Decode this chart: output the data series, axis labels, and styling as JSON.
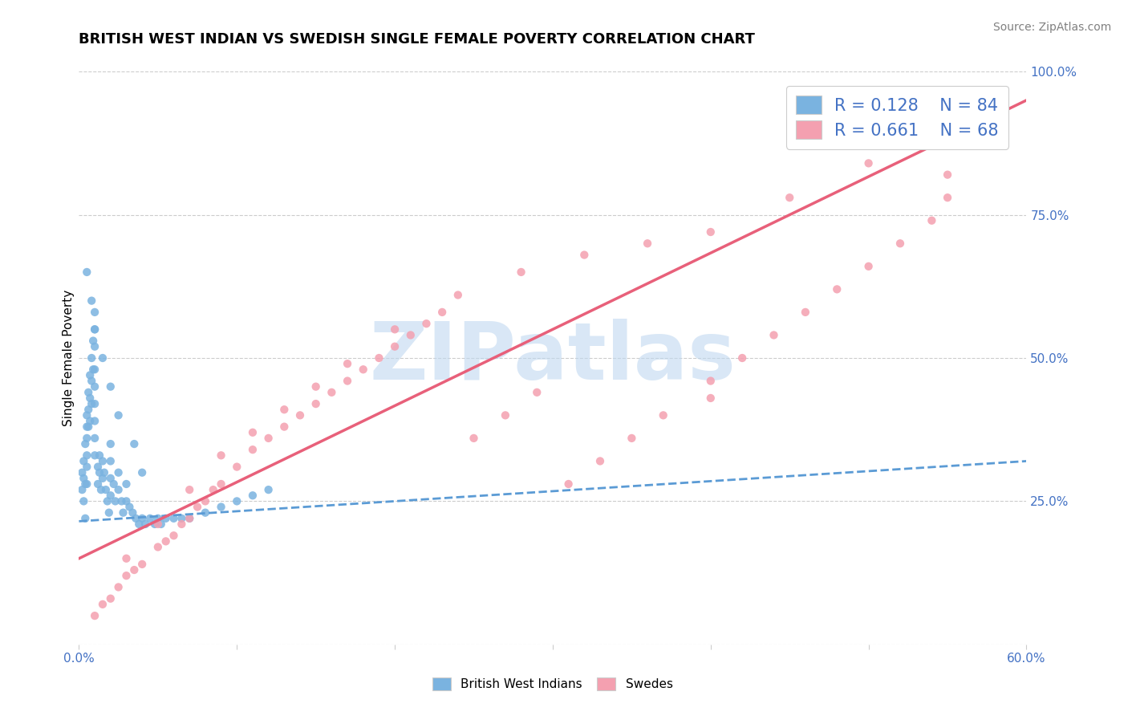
{
  "title": "BRITISH WEST INDIAN VS SWEDISH SINGLE FEMALE POVERTY CORRELATION CHART",
  "source": "Source: ZipAtlas.com",
  "ylabel": "Single Female Poverty",
  "xlim": [
    0.0,
    0.6
  ],
  "ylim": [
    0.0,
    1.0
  ],
  "xticks": [
    0.0,
    0.1,
    0.2,
    0.3,
    0.4,
    0.5,
    0.6
  ],
  "xticklabels": [
    "0.0%",
    "",
    "",
    "",
    "",
    "",
    "60.0%"
  ],
  "yticks_right": [
    0.0,
    0.25,
    0.5,
    0.75,
    1.0
  ],
  "ytick_right_labels": [
    "",
    "25.0%",
    "50.0%",
    "75.0%",
    "100.0%"
  ],
  "bwi_color": "#7ab3e0",
  "swe_color": "#f4a0b0",
  "bwi_line_color": "#5b9bd5",
  "swe_line_color": "#e8607a",
  "R_bwi": 0.128,
  "N_bwi": 84,
  "R_swe": 0.661,
  "N_swe": 68,
  "legend_R_N_color": "#4472c4",
  "watermark": "ZIPatlas",
  "watermark_color": "#c0d8f0",
  "background_color": "#ffffff",
  "grid_color": "#cccccc",
  "bwi_scatter_x": [
    0.002,
    0.002,
    0.003,
    0.003,
    0.003,
    0.004,
    0.004,
    0.004,
    0.005,
    0.005,
    0.005,
    0.005,
    0.005,
    0.005,
    0.006,
    0.006,
    0.006,
    0.007,
    0.007,
    0.007,
    0.008,
    0.008,
    0.008,
    0.009,
    0.009,
    0.01,
    0.01,
    0.01,
    0.01,
    0.01,
    0.01,
    0.01,
    0.01,
    0.01,
    0.012,
    0.012,
    0.013,
    0.013,
    0.014,
    0.015,
    0.015,
    0.016,
    0.017,
    0.018,
    0.019,
    0.02,
    0.02,
    0.02,
    0.02,
    0.022,
    0.023,
    0.025,
    0.025,
    0.027,
    0.028,
    0.03,
    0.03,
    0.032,
    0.034,
    0.036,
    0.038,
    0.04,
    0.042,
    0.045,
    0.048,
    0.05,
    0.052,
    0.055,
    0.06,
    0.065,
    0.07,
    0.08,
    0.09,
    0.1,
    0.11,
    0.12,
    0.005,
    0.008,
    0.01,
    0.015,
    0.02,
    0.025,
    0.035,
    0.04
  ],
  "bwi_scatter_y": [
    0.3,
    0.27,
    0.32,
    0.29,
    0.25,
    0.35,
    0.28,
    0.22,
    0.4,
    0.38,
    0.36,
    0.33,
    0.31,
    0.28,
    0.44,
    0.41,
    0.38,
    0.47,
    0.43,
    0.39,
    0.5,
    0.46,
    0.42,
    0.53,
    0.48,
    0.58,
    0.55,
    0.52,
    0.48,
    0.45,
    0.42,
    0.39,
    0.36,
    0.33,
    0.31,
    0.28,
    0.33,
    0.3,
    0.27,
    0.32,
    0.29,
    0.3,
    0.27,
    0.25,
    0.23,
    0.35,
    0.32,
    0.29,
    0.26,
    0.28,
    0.25,
    0.3,
    0.27,
    0.25,
    0.23,
    0.28,
    0.25,
    0.24,
    0.23,
    0.22,
    0.21,
    0.22,
    0.21,
    0.22,
    0.21,
    0.22,
    0.21,
    0.22,
    0.22,
    0.22,
    0.22,
    0.23,
    0.24,
    0.25,
    0.26,
    0.27,
    0.65,
    0.6,
    0.55,
    0.5,
    0.45,
    0.4,
    0.35,
    0.3
  ],
  "swe_scatter_x": [
    0.01,
    0.015,
    0.02,
    0.025,
    0.03,
    0.035,
    0.04,
    0.05,
    0.055,
    0.06,
    0.065,
    0.07,
    0.075,
    0.08,
    0.085,
    0.09,
    0.1,
    0.11,
    0.12,
    0.13,
    0.14,
    0.15,
    0.16,
    0.17,
    0.18,
    0.19,
    0.2,
    0.21,
    0.22,
    0.23,
    0.25,
    0.27,
    0.29,
    0.31,
    0.33,
    0.35,
    0.37,
    0.4,
    0.42,
    0.44,
    0.46,
    0.48,
    0.5,
    0.52,
    0.54,
    0.03,
    0.05,
    0.07,
    0.09,
    0.11,
    0.13,
    0.15,
    0.17,
    0.2,
    0.24,
    0.28,
    0.32,
    0.36,
    0.4,
    0.45,
    0.5,
    0.55,
    0.4,
    0.55,
    0.55,
    0.56,
    0.55,
    0.54
  ],
  "swe_scatter_y": [
    0.05,
    0.07,
    0.08,
    0.1,
    0.12,
    0.13,
    0.14,
    0.17,
    0.18,
    0.19,
    0.21,
    0.22,
    0.24,
    0.25,
    0.27,
    0.28,
    0.31,
    0.34,
    0.36,
    0.38,
    0.4,
    0.42,
    0.44,
    0.46,
    0.48,
    0.5,
    0.52,
    0.54,
    0.56,
    0.58,
    0.36,
    0.4,
    0.44,
    0.28,
    0.32,
    0.36,
    0.4,
    0.46,
    0.5,
    0.54,
    0.58,
    0.62,
    0.66,
    0.7,
    0.74,
    0.15,
    0.21,
    0.27,
    0.33,
    0.37,
    0.41,
    0.45,
    0.49,
    0.55,
    0.61,
    0.65,
    0.68,
    0.7,
    0.72,
    0.78,
    0.84,
    0.9,
    0.43,
    0.78,
    0.82,
    0.88,
    0.92,
    0.95
  ],
  "bwi_trend_x": [
    0.0,
    0.6
  ],
  "bwi_trend_y": [
    0.215,
    0.32
  ],
  "swe_trend_x": [
    0.0,
    0.6
  ],
  "swe_trend_y": [
    0.15,
    0.95
  ]
}
